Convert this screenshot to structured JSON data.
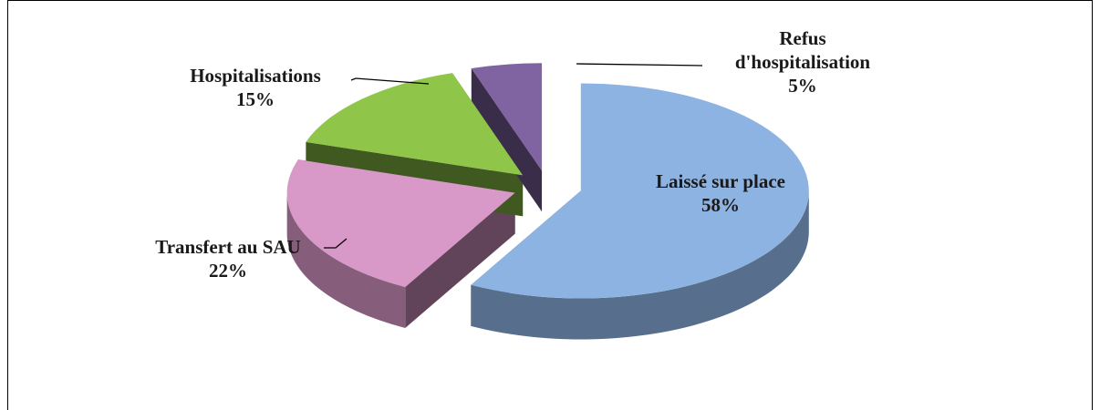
{
  "chart_data": {
    "type": "pie",
    "categories": [
      "Laissé sur place",
      "Transfert au SAU",
      "Hospitalisations",
      "Refus d'hospitalisation"
    ],
    "values": [
      58,
      22,
      15,
      5
    ],
    "value_labels": [
      "58%",
      "22%",
      "15%",
      "5%"
    ],
    "colors": [
      "#8db3e2",
      "#d898c8",
      "#8fc64a",
      "#8064a2"
    ]
  }
}
